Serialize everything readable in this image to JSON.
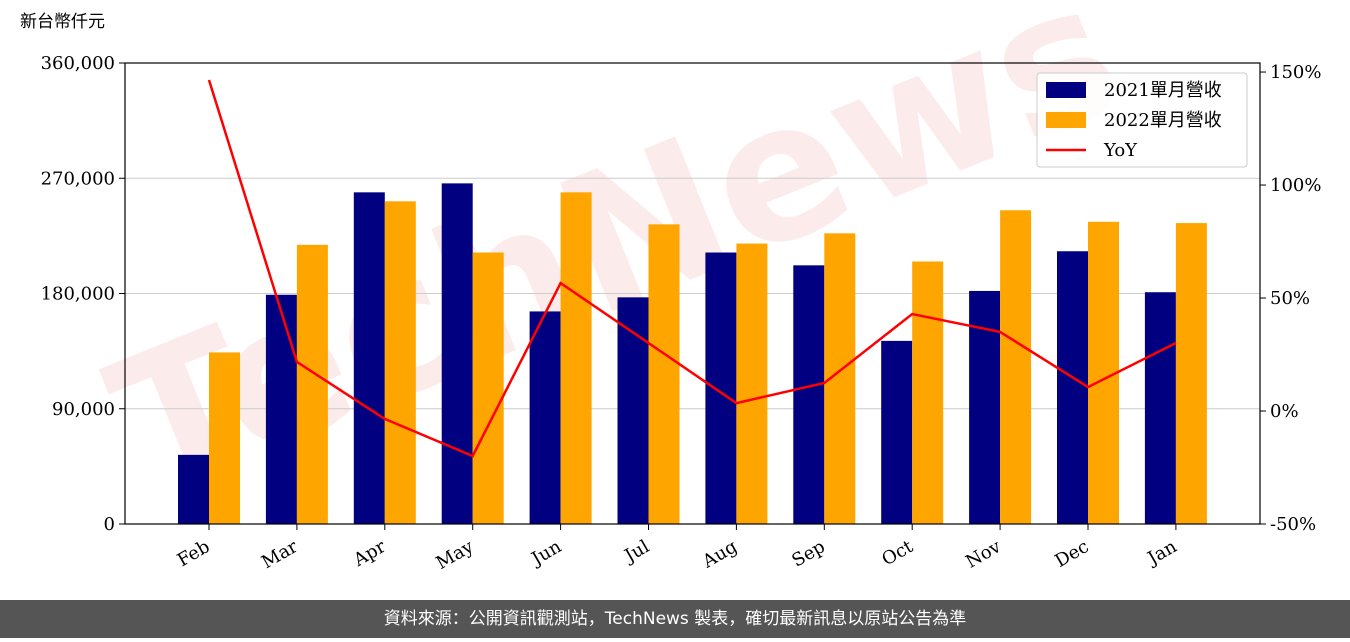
{
  "chart_data": {
    "type": "bar-line",
    "y_label": "新台幣仟元",
    "watermark": "TechNews",
    "footer": "資料來源：公開資訊觀測站，TechNews 製表，確切最新訊息以原站公告為準",
    "categories": [
      "Feb",
      "Mar",
      "Apr",
      "May",
      "Jun",
      "Jul",
      "Aug",
      "Sep",
      "Oct",
      "Nov",
      "Dec",
      "Jan"
    ],
    "series": [
      {
        "name": "2021單月營收",
        "color": "#000080",
        "kind": "bar",
        "values": [
          54000,
          179000,
          259000,
          266000,
          166000,
          177000,
          212000,
          202000,
          143000,
          182000,
          213000,
          181000
        ]
      },
      {
        "name": "2022單月營收",
        "color": "#ffa500",
        "kind": "bar",
        "values": [
          134000,
          218000,
          252000,
          212000,
          259000,
          234000,
          219000,
          227000,
          205000,
          245000,
          236000,
          235000
        ]
      },
      {
        "name": "YoY",
        "color": "#ff0000",
        "kind": "line",
        "axis": "y2",
        "values": [
          146.5,
          21.7,
          -3.5,
          -19.9,
          56.6,
          30.1,
          3.5,
          12.4,
          42.9,
          35,
          10.6,
          30.1
        ]
      }
    ],
    "ylim": [
      0,
      360000
    ],
    "yticks": [
      0,
      {
        "value": 90000,
        "label": "90,000"
      },
      {
        "value": 180000,
        "label": "180,000"
      },
      {
        "value": 270000,
        "label": "270,000"
      },
      {
        "value": 360000,
        "label": "360,000"
      }
    ],
    "y2lim": [
      -50,
      154
    ],
    "y2ticks": [
      {
        "value": -50,
        "label": "-50%"
      },
      {
        "value": 0,
        "label": "0%"
      },
      {
        "value": 50,
        "label": "50%"
      },
      {
        "value": 100,
        "label": "100%"
      },
      {
        "value": 150,
        "label": "150%"
      }
    ],
    "grid": true,
    "legend": "upper right"
  }
}
